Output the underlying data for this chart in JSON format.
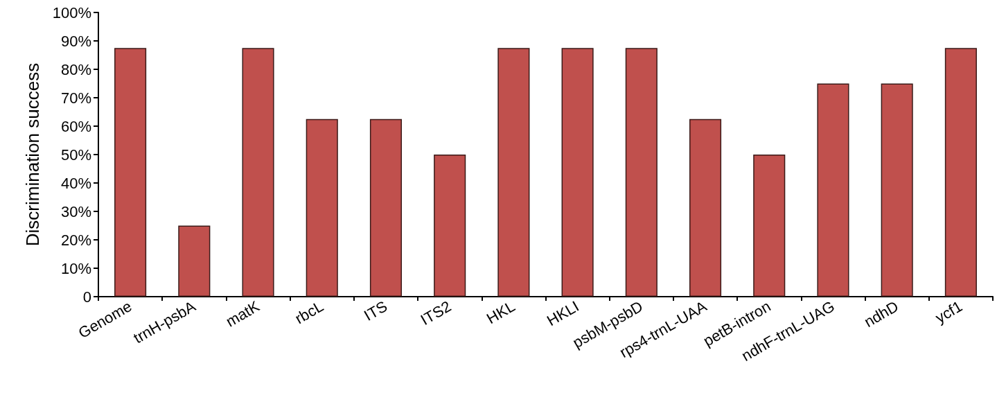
{
  "chart_data": {
    "type": "bar",
    "ylabel": "Discrimination success",
    "categories": [
      "Genome",
      "trnH-psbA",
      "matK",
      "rbcL",
      "ITS",
      "ITS2",
      "HKL",
      "HKLI",
      "psbM-psbD",
      "rps4-trnL-UAA",
      "petB-intron",
      "ndhF-trnL-UAG",
      "ndhD",
      "ycf1"
    ],
    "values": [
      87.5,
      25,
      87.5,
      62.5,
      62.5,
      50,
      87.5,
      87.5,
      87.5,
      62.5,
      50,
      75,
      75,
      87.5
    ],
    "color": "#c0504d",
    "ylim": [
      0,
      100
    ],
    "yticks": [
      0,
      {
        "value": 10,
        "label": "10%"
      },
      {
        "value": 20,
        "label": "20%"
      },
      {
        "value": 30,
        "label": "30%"
      },
      {
        "value": 40,
        "label": "40%"
      },
      {
        "value": 50,
        "label": "50%"
      },
      {
        "value": 60,
        "label": "60%"
      },
      {
        "value": 70,
        "label": "70%"
      },
      {
        "value": 80,
        "label": "80%"
      },
      {
        "value": 90,
        "label": "90%"
      },
      {
        "value": 100,
        "label": "100%"
      }
    ],
    "grid": false
  }
}
